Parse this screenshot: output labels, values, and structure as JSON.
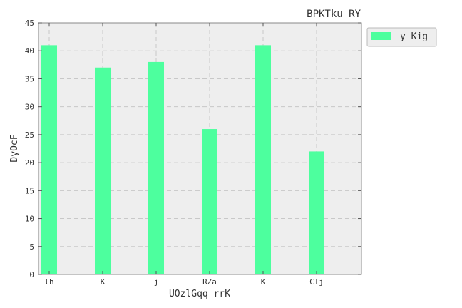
{
  "chart_data": {
    "type": "bar",
    "title": "BPKTku RY",
    "xlabel": "UOzlGqq rrK",
    "ylabel": "DyOcF",
    "categories": [
      "lh",
      "K",
      "j",
      "RZa",
      "K",
      "CTj"
    ],
    "series": [
      {
        "name": "y Kig",
        "values": [
          41,
          37,
          38,
          26,
          41,
          22
        ],
        "color": "#4dff9e"
      }
    ],
    "ylim": [
      0,
      45
    ],
    "yticks": [
      0,
      5,
      10,
      15,
      20,
      25,
      30,
      35,
      40,
      45
    ],
    "grid": true,
    "legend_position": "outside-top-right",
    "plot_background": "#eeeeee"
  }
}
